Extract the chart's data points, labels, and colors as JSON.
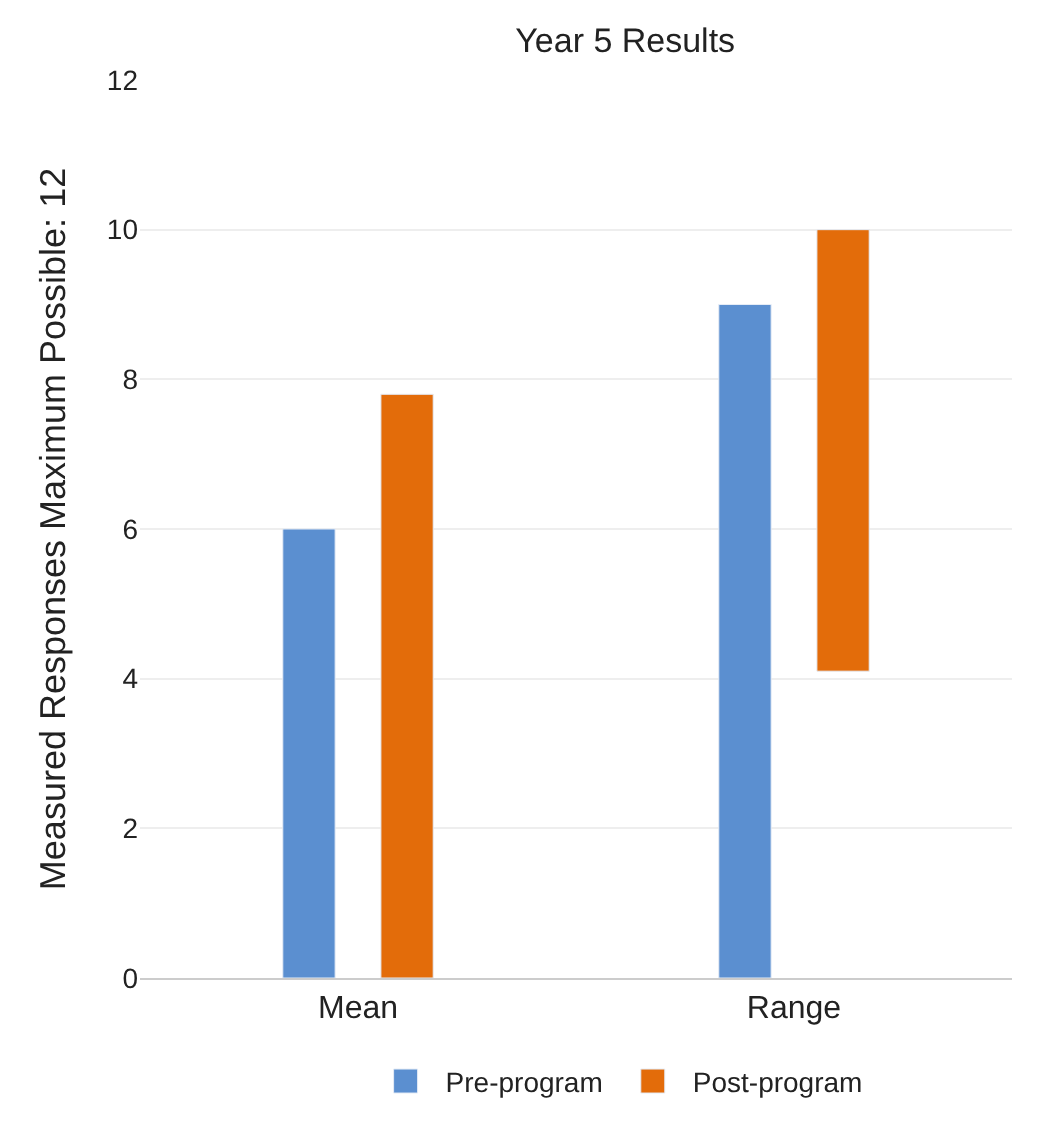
{
  "chart_data": {
    "type": "bar",
    "title": "Year 5 Results",
    "ylabel": "Measured Responses Maximum Possible: 12",
    "categories": [
      "Mean",
      "Range"
    ],
    "series": [
      {
        "name": "Pre-program",
        "color": "#5b8fd0",
        "values": [
          6,
          9
        ]
      },
      {
        "name": "Post-program",
        "color": "#e36c0a",
        "values": [
          7.8,
          5.9
        ],
        "base": [
          0,
          4.1
        ]
      }
    ],
    "ylim": [
      0,
      12
    ],
    "yticks": [
      0,
      2,
      4,
      6,
      8,
      10,
      12
    ],
    "grid": "y",
    "legend": "bottom"
  }
}
